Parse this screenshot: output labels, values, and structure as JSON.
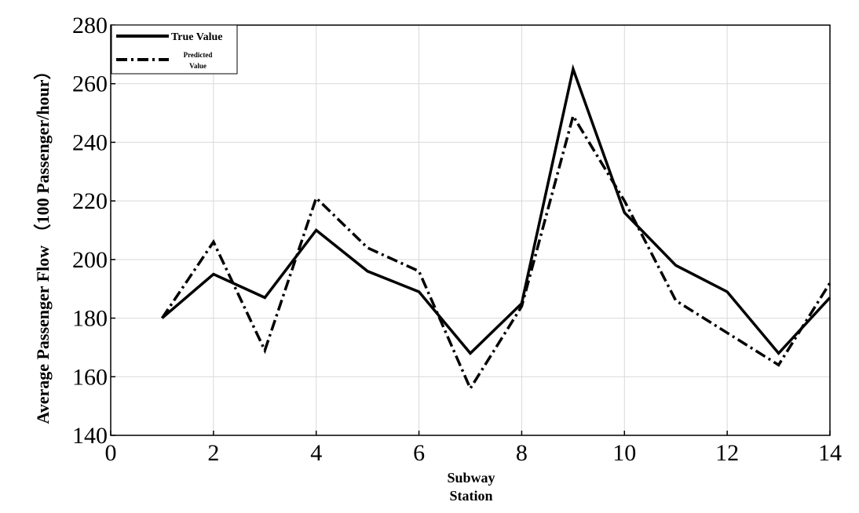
{
  "chart_data": {
    "type": "line",
    "title": "",
    "xlabel": [
      "Subway",
      "Station"
    ],
    "ylabel": "Average Passenger Flow （100 Passenger/hour）",
    "xlim": [
      0,
      14
    ],
    "ylim": [
      140,
      280
    ],
    "xticks": [
      0,
      2,
      4,
      6,
      8,
      10,
      12,
      14
    ],
    "yticks": [
      140,
      160,
      180,
      200,
      220,
      240,
      260,
      280
    ],
    "grid": true,
    "legend_position": "top-left",
    "x": [
      1,
      2,
      3,
      4,
      5,
      6,
      7,
      8,
      9,
      10,
      11,
      12,
      13,
      14
    ],
    "series": [
      {
        "name": "True Value",
        "style": "solid",
        "color": "#000000",
        "values": [
          180,
          195,
          187,
          210,
          196,
          189,
          168,
          185,
          265,
          216,
          198,
          189,
          168,
          187
        ]
      },
      {
        "name": "Predicted Value",
        "legend_lines": [
          "Predicted",
          "Value"
        ],
        "style": "dashdot",
        "color": "#000000",
        "values": [
          180,
          206,
          169,
          221,
          204,
          196,
          156,
          184,
          249,
          220,
          186,
          175,
          164,
          192
        ]
      }
    ]
  }
}
